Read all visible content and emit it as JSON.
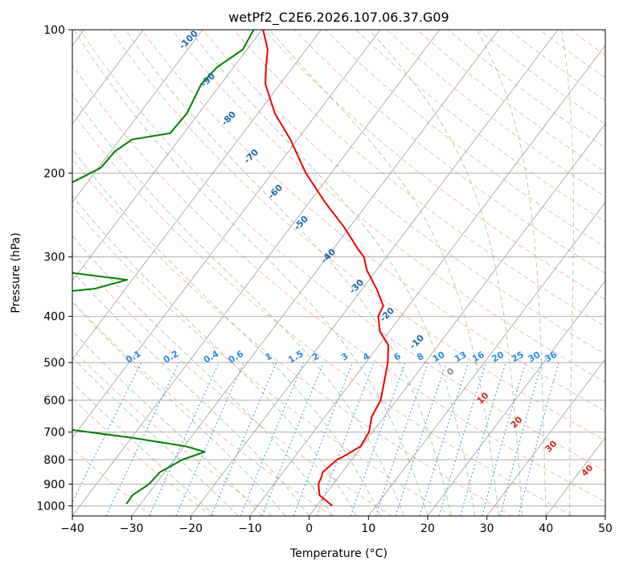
{
  "chart_data": {
    "type": "line",
    "diagram": "skew-T log-p",
    "title": "wetPf2_C2E6.2026.107.06.37.G09",
    "xlabel": "Temperature (°C)",
    "ylabel": "Pressure (hPa)",
    "xlim": [
      -40,
      50
    ],
    "ylim": [
      1050,
      100
    ],
    "x_ticks": [
      "−40",
      "−30",
      "−20",
      "−10",
      "0",
      "10",
      "20",
      "30",
      "40",
      "50"
    ],
    "y_ticks": [
      "100",
      "200",
      "300",
      "400",
      "500",
      "600",
      "700",
      "800",
      "900",
      "1000"
    ],
    "y_tick_values": [
      100,
      200,
      300,
      400,
      500,
      600,
      700,
      800,
      900,
      1000
    ],
    "grid": true,
    "colors": {
      "temperature": "#ee0000",
      "dewpoint": "#008000",
      "isotherm": "#9a9a9a",
      "dry_adiabat": "#f4a582",
      "moist_adiabat": "#88c488",
      "mixing_ratio": "#3a8fe0",
      "moist_label": "#1f6aa5",
      "mixing_label": "#2a8ce8",
      "dry_label": "#d62728",
      "zero_label": "#888888"
    },
    "series": [
      {
        "name": "Temperature",
        "pressure": [
          100,
          110,
          120,
          130,
          150,
          170,
          200,
          230,
          260,
          290,
          300,
          320,
          350,
          380,
          400,
          430,
          460,
          500,
          550,
          600,
          650,
          700,
          750,
          790,
          800,
          850,
          870,
          900,
          950,
          1000
        ],
        "values": [
          -69.8,
          -66.5,
          -64.5,
          -62.5,
          -57.1,
          -51.2,
          -44.3,
          -37.4,
          -30.9,
          -25.6,
          -23.8,
          -21.6,
          -17.6,
          -14.3,
          -13.8,
          -11.6,
          -8.4,
          -6.3,
          -4.4,
          -2.7,
          -2.1,
          -0.6,
          -0.2,
          -1.9,
          -2.5,
          -3.3,
          -2.9,
          -2.5,
          -0.9,
          2.6
        ]
      },
      {
        "name": "Dewpoint",
        "pressure": [
          100,
          110,
          120,
          130,
          150,
          165,
          170,
          180,
          195,
          210,
          230,
          250,
          270,
          280,
          290,
          300,
          320,
          335,
          350,
          370,
          380,
          390,
          410,
          430,
          450,
          480,
          500,
          520,
          530,
          560,
          580,
          600,
          615,
          640,
          680,
          720,
          750,
          770,
          800,
          850,
          900,
          950,
          990
        ],
        "values": [
          -71.4,
          -70.7,
          -72.8,
          -73.3,
          -72.0,
          -72.3,
          -77.9,
          -79.3,
          -79.6,
          -82.7,
          -82.4,
          -83.3,
          -89.2,
          -101.4,
          -105.0,
          -105.8,
          -74.9,
          -60.9,
          -65.2,
          -84.1,
          -103.5,
          -101.6,
          -80.9,
          -91.1,
          -90.6,
          -79.9,
          -78.3,
          -81.4,
          -85.6,
          -77.3,
          -74.0,
          -71.5,
          -69.5,
          -66.6,
          -56.3,
          -39.7,
          -29.7,
          -25.8,
          -28.6,
          -30.8,
          -31.1,
          -32.5,
          -32.4
        ]
      }
    ],
    "mixing_ratio_labels": [
      "0.1",
      "0.2",
      "0.4",
      "0.6",
      "1",
      "1.5",
      "2",
      "3",
      "4",
      "6",
      "8",
      "10",
      "13",
      "16",
      "20",
      "25",
      "30",
      "36"
    ],
    "mixing_ratio_values": [
      0.1,
      0.2,
      0.4,
      0.6,
      1,
      1.5,
      2,
      3,
      4,
      6,
      8,
      10,
      13,
      16,
      20,
      25,
      30,
      36
    ],
    "moist_adiabat_labels": [
      "-100",
      "-90",
      "-80",
      "-70",
      "-60",
      "-50",
      "-40",
      "-30",
      "-20",
      "-10"
    ],
    "moist_adiabat_values": [
      -100,
      -90,
      -80,
      -70,
      -60,
      -50,
      -40,
      -30,
      -20,
      -10
    ],
    "dry_adiabat_labels": [
      "0",
      "10",
      "20",
      "30",
      "40"
    ],
    "dry_adiabat_values": [
      0,
      10,
      20,
      30,
      40
    ]
  }
}
